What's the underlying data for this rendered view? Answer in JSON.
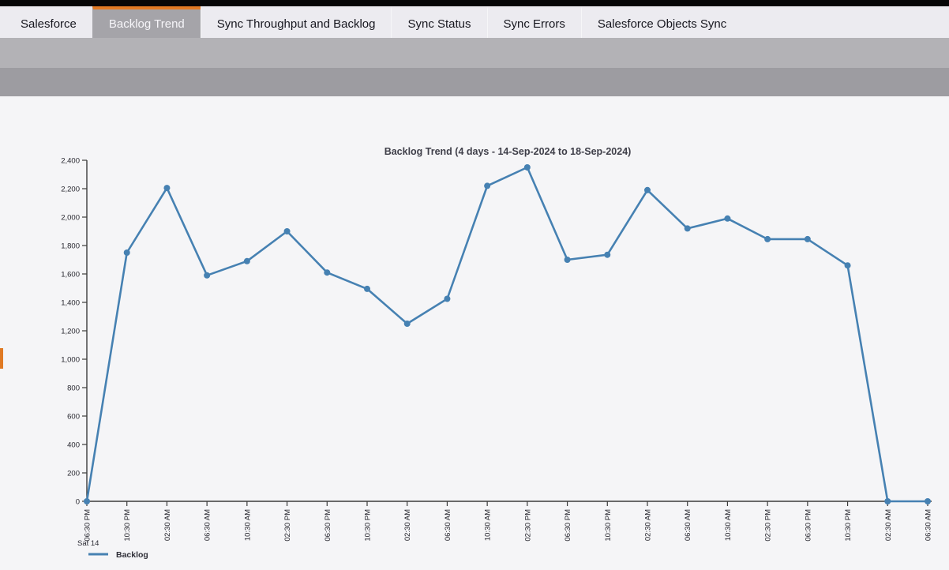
{
  "colors": {
    "accent_orange": "#e07a24",
    "series_blue": "#4681b2",
    "active_tab_bg": "#a5a4a9",
    "tab_bar_bg": "#ecebf0",
    "strip_upper": "#b3b2b6",
    "strip_lower": "#9d9ca1",
    "page_bg": "#f5f5f7",
    "top_bar": "#060606"
  },
  "tabs": {
    "items": [
      {
        "label": "Salesforce",
        "active": false
      },
      {
        "label": "Backlog Trend",
        "active": true
      },
      {
        "label": "Sync Throughput and Backlog",
        "active": false
      },
      {
        "label": "Sync Status",
        "active": false
      },
      {
        "label": "Sync Errors",
        "active": false
      },
      {
        "label": "Salesforce Objects Sync",
        "active": false
      }
    ]
  },
  "chart_data": {
    "type": "line",
    "title": "Backlog Trend (4 days - 14-Sep-2024 to 18-Sep-2024)",
    "x_labels": [
      "06:30 PM",
      "10:30 PM",
      "02:30 AM",
      "06:30 AM",
      "10:30 AM",
      "02:30 PM",
      "06:30 PM",
      "10:30 PM",
      "02:30 AM",
      "06:30 AM",
      "10:30 AM",
      "02:30 PM",
      "06:30 PM",
      "10:30 PM",
      "02:30 AM",
      "06:30 AM",
      "10:30 AM",
      "02:30 PM",
      "06:30 PM",
      "10:30 PM",
      "02:30 AM",
      "06:30 AM"
    ],
    "x_axis_day_label": "Sat 14",
    "series": [
      {
        "name": "Backlog",
        "color": "#4681b2",
        "values": [
          0,
          1750,
          2205,
          1590,
          1690,
          1900,
          1610,
          1495,
          1250,
          1425,
          2220,
          2350,
          1700,
          1735,
          2190,
          1920,
          1990,
          1845,
          1845,
          1660,
          0,
          0
        ]
      }
    ],
    "ylim": [
      0,
      2400
    ],
    "y_tick_step": 200,
    "grid": false,
    "legend_position": "bottom-left"
  }
}
